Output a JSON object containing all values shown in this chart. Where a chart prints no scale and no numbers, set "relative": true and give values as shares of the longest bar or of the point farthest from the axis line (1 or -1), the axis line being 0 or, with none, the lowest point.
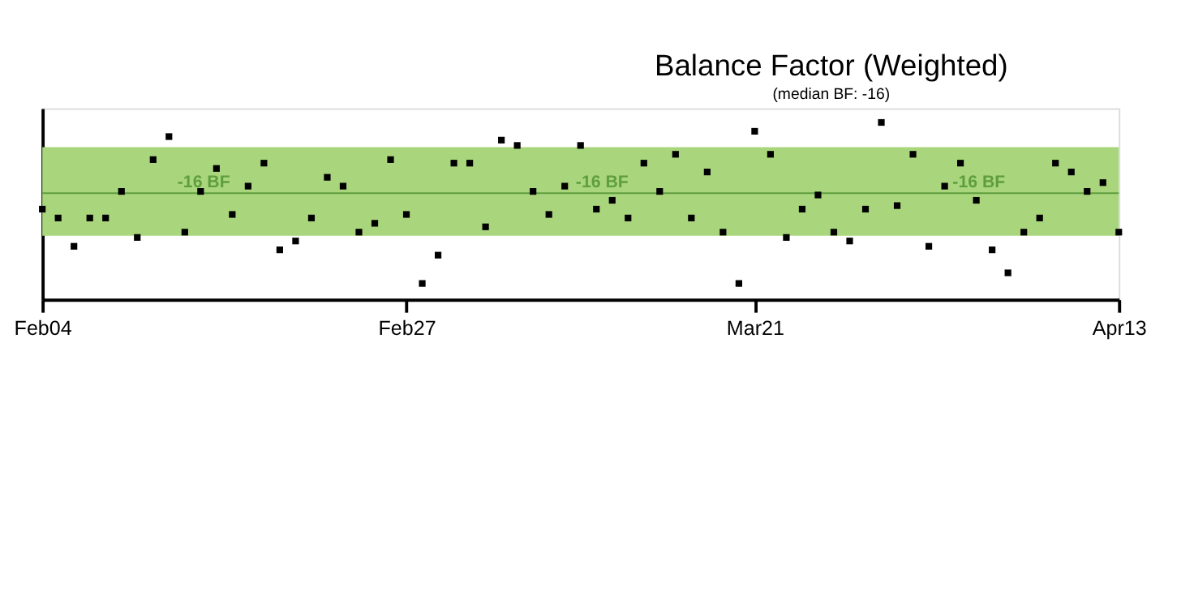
{
  "chart_data": {
    "type": "scatter",
    "title": "Balance Factor (Weighted)",
    "subtitle": "(median BF: -16)",
    "relative": true,
    "marker": "square",
    "grid": false,
    "x": [
      "--02-04",
      "--02-05",
      "--02-06",
      "--02-07",
      "--02-08",
      "--02-09",
      "--02-10",
      "--02-11",
      "--02-12",
      "--02-13",
      "--02-14",
      "--02-15",
      "--02-16",
      "--02-17",
      "--02-18",
      "--02-19",
      "--02-20",
      "--02-21",
      "--02-22",
      "--02-23",
      "--02-24",
      "--02-25",
      "--02-26",
      "--02-27",
      "--02-28",
      "--03-01",
      "--03-02",
      "--03-03",
      "--03-04",
      "--03-05",
      "--03-06",
      "--03-07",
      "--03-08",
      "--03-09",
      "--03-10",
      "--03-11",
      "--03-12",
      "--03-13",
      "--03-14",
      "--03-15",
      "--03-16",
      "--03-17",
      "--03-18",
      "--03-19",
      "--03-20",
      "--03-21",
      "--03-22",
      "--03-23",
      "--03-24",
      "--03-25",
      "--03-26",
      "--03-27",
      "--03-28",
      "--03-29",
      "--03-30",
      "--03-31",
      "--04-01",
      "--04-02",
      "--04-03",
      "--04-04",
      "--04-05",
      "--04-06",
      "--04-07",
      "--04-08",
      "--04-09",
      "--04-10",
      "--04-11",
      "--04-12",
      "--04-13"
    ],
    "xlim": [
      "--02-04",
      "--04-13"
    ],
    "xticks": [
      {
        "value": "--02-04",
        "label": "Feb04"
      },
      {
        "value": "--02-27",
        "label": "Feb27"
      },
      {
        "value": "--03-21",
        "label": "Mar21"
      },
      {
        "value": "--04-13",
        "label": "Apr13"
      }
    ],
    "series": [
      {
        "color": "#000000",
        "values": [
          0.51,
          0.46,
          0.3,
          0.46,
          0.46,
          0.61,
          0.35,
          0.79,
          0.92,
          0.38,
          0.61,
          0.74,
          0.48,
          0.64,
          0.77,
          0.28,
          0.33,
          0.46,
          0.69,
          0.64,
          0.38,
          0.43,
          0.79,
          0.48,
          0.09,
          0.25,
          0.77,
          0.77,
          0.41,
          0.9,
          0.87,
          0.61,
          0.48,
          0.64,
          0.87,
          0.51,
          0.56,
          0.46,
          0.77,
          0.61,
          0.82,
          0.46,
          0.72,
          0.38,
          0.09,
          0.95,
          0.82,
          0.35,
          0.51,
          0.59,
          0.38,
          0.33,
          0.51,
          1,
          0.53,
          0.82,
          0.3,
          0.64,
          0.77,
          0.56,
          0.28,
          0.15,
          0.38,
          0.46,
          0.77,
          0.72,
          0.61,
          0.66,
          0.38
        ]
      }
    ],
    "bands": [
      {
        "axis": "y",
        "from": 0.36,
        "to": 0.86,
        "color": "#a9d67c"
      }
    ],
    "ref_lines": [
      {
        "axis": "y",
        "value": 0.6,
        "label": "-16 BF",
        "color": "#5f9e3f"
      }
    ]
  }
}
